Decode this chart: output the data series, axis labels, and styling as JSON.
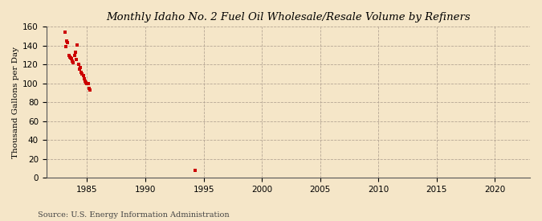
{
  "title": "Monthly Idaho No. 2 Fuel Oil Wholesale/Resale Volume by Refiners",
  "ylabel": "Thousand Gallons per Day",
  "source": "Source: U.S. Energy Information Administration",
  "background_color": "#f5e6c8",
  "plot_background_color": "#f5e6c8",
  "dot_color": "#cc0000",
  "xlim": [
    1981.5,
    2023
  ],
  "ylim": [
    0,
    160
  ],
  "xticks": [
    1985,
    1990,
    1995,
    2000,
    2005,
    2010,
    2015,
    2020
  ],
  "yticks": [
    0,
    20,
    40,
    60,
    80,
    100,
    120,
    140,
    160
  ],
  "data_points": [
    [
      1983.08,
      154
    ],
    [
      1983.17,
      139
    ],
    [
      1983.25,
      145
    ],
    [
      1983.33,
      143
    ],
    [
      1983.42,
      130
    ],
    [
      1983.5,
      128
    ],
    [
      1983.58,
      127
    ],
    [
      1983.67,
      126
    ],
    [
      1983.75,
      124
    ],
    [
      1983.83,
      122
    ],
    [
      1983.92,
      130
    ],
    [
      1984.0,
      133
    ],
    [
      1984.08,
      125
    ],
    [
      1984.17,
      141
    ],
    [
      1984.25,
      120
    ],
    [
      1984.33,
      115
    ],
    [
      1984.42,
      117
    ],
    [
      1984.5,
      112
    ],
    [
      1984.58,
      110
    ],
    [
      1984.67,
      108
    ],
    [
      1984.75,
      105
    ],
    [
      1984.83,
      102
    ],
    [
      1984.92,
      101
    ],
    [
      1985.0,
      100
    ],
    [
      1985.08,
      100
    ],
    [
      1985.17,
      95
    ],
    [
      1985.25,
      93
    ],
    [
      1994.25,
      8
    ]
  ]
}
